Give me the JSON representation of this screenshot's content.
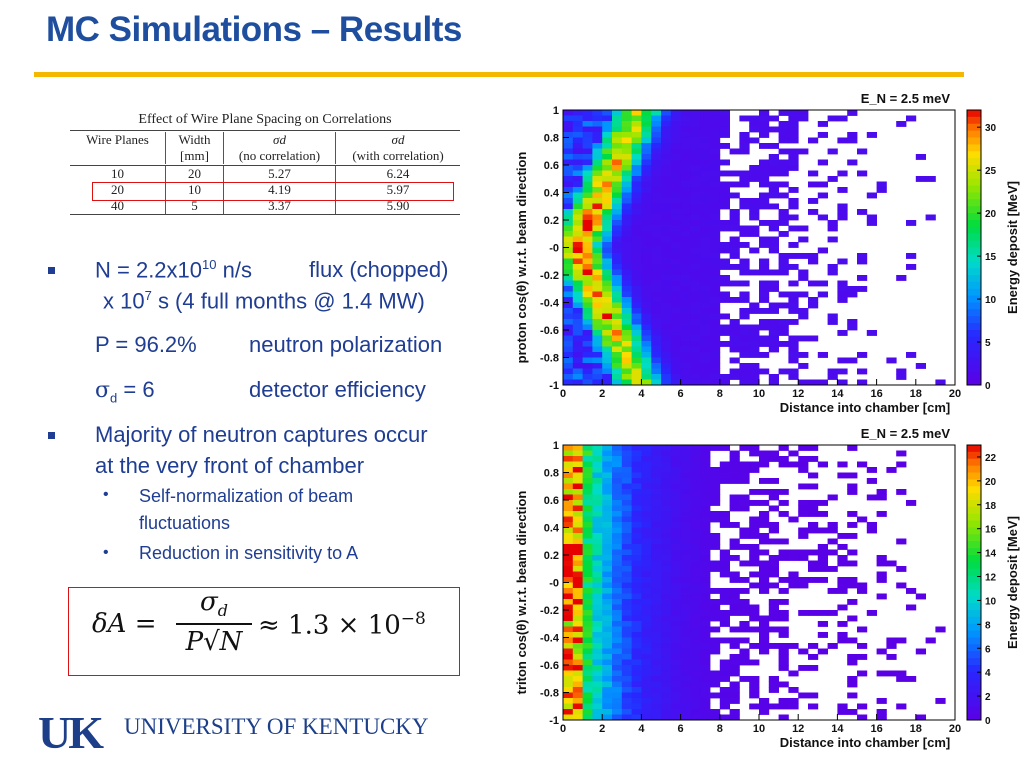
{
  "title": "MC Simulations – Results",
  "table": {
    "caption": "Effect of Wire Plane Spacing on Correlations",
    "headers": [
      [
        "Wire Planes",
        ""
      ],
      [
        "Width",
        "[mm]"
      ],
      [
        "σd",
        "(no correlation)"
      ],
      [
        "σd",
        "(with correlation)"
      ]
    ],
    "rows": [
      [
        "10",
        "20",
        "5.27",
        "6.24"
      ],
      [
        "20",
        "10",
        "4.19",
        "5.97"
      ],
      [
        "40",
        "5",
        "3.37",
        "5.90"
      ]
    ]
  },
  "bullets": {
    "b1_line1_a": "N = 2.2x10",
    "b1_line1_sup": "10",
    "b1_line1_b": " n/s",
    "b1_line1_c": "flux (chopped)",
    "b1_line2_a": "x 10",
    "b1_line2_sup": "7",
    "b1_line2_b": " s  (4 full months @ 1.4 MW)",
    "b1_line3_a": "P = 96.2%",
    "b1_line3_b": "neutron polarization",
    "b1_line4_sym": "σ",
    "b1_line4_sub": "d",
    "b1_line4_a": " = 6",
    "b1_line4_b": "detector efficiency",
    "b2_line1": "Majority of neutron captures occur",
    "b2_line2": "at the very front of chamber",
    "sub1_line1": "Self-normalization of beam",
    "sub1_line2": "fluctuations",
    "sub2": "Reduction in sensitivity to A"
  },
  "formula": {
    "lhs": "δA =",
    "num": "σ",
    "num_sub": "d",
    "den": "P√N",
    "rhs": "≈ 1.3 × 10",
    "rhs_sup": "−8"
  },
  "logo": {
    "mark": "UK",
    "name": "UNIVERSITY OF KENTUCKY"
  },
  "colors": {
    "title": "#1f4e9e",
    "rule": "#f5b800",
    "text": "#1f3d92",
    "box": "#dd1111"
  },
  "chart_data": [
    {
      "type": "heatmap",
      "title": "E_N = 2.5 meV",
      "xlabel": "Distance into chamber  [cm]",
      "ylabel": "proton cos(θ) w.r.t.  beam direction",
      "zlabel": "Energy deposit [MeV]",
      "xlim": [
        0,
        20
      ],
      "ylim": [
        -1,
        1
      ],
      "zlim": [
        0,
        32
      ],
      "xticks": [
        "0",
        "2",
        "4",
        "6",
        "8",
        "10",
        "12",
        "14",
        "16",
        "18",
        "20"
      ],
      "yticks": [
        "1",
        "0.8",
        "0.6",
        "0.4",
        "0.2",
        "-0",
        "-0.2",
        "-0.4",
        "-0.6",
        "-0.8",
        "-1"
      ],
      "zticks": [
        "30",
        "25",
        "20",
        "15",
        "10",
        "5",
        "0"
      ],
      "shape": "diagonal band: peak near x≈0–1 at cos≈0, hot band curving to x≈4 at cos≈±1, sparse purple tail to x≈20"
    },
    {
      "type": "heatmap",
      "title": "E_N = 2.5 meV",
      "xlabel": "Distance into chamber  [cm]",
      "ylabel": "triton cos(θ) w.r.t. beam direction",
      "zlabel": "Energy deposit [MeV]",
      "xlim": [
        0,
        20
      ],
      "ylim": [
        -1,
        1
      ],
      "zlim": [
        0,
        23
      ],
      "xticks": [
        "0",
        "2",
        "4",
        "6",
        "8",
        "10",
        "12",
        "14",
        "16",
        "18",
        "20"
      ],
      "yticks": [
        "1",
        "0.8",
        "0.6",
        "0.4",
        "0.2",
        "-0",
        "-0.2",
        "-0.4",
        "-0.6",
        "-0.8",
        "-1"
      ],
      "zticks": [
        "22",
        "20",
        "18",
        "16",
        "14",
        "12",
        "10",
        "8",
        "6",
        "4",
        "2",
        "0"
      ],
      "shape": "vertical band: hot region at x≈0–2 for all cos values, decaying to purple by x≈8, sparse to x≈20"
    }
  ]
}
